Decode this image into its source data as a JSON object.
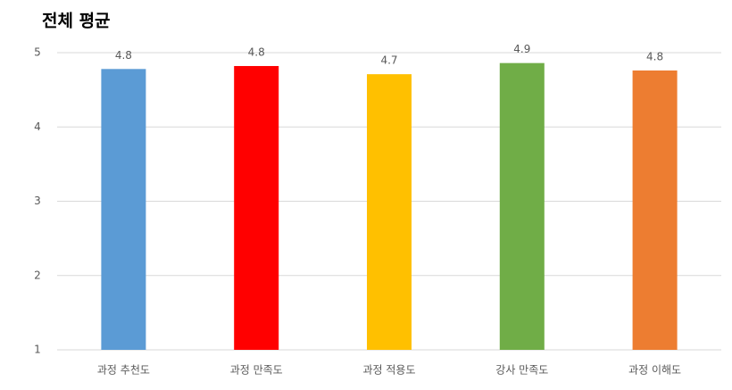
{
  "chart_data": {
    "type": "bar",
    "title": "전체 평균",
    "categories": [
      "과정 추천도",
      "과정 만족도",
      "과정 적용도",
      "강사 만족도",
      "과정 이해도"
    ],
    "values": [
      4.78,
      4.82,
      4.71,
      4.86,
      4.76
    ],
    "value_labels": [
      "4.8",
      "4.8",
      "4.7",
      "4.9",
      "4.8"
    ],
    "colors": [
      "#5b9bd5",
      "#ff0000",
      "#ffc000",
      "#70ad47",
      "#ed7d31"
    ],
    "ylim": [
      1,
      5
    ],
    "yticks": [
      1,
      2,
      3,
      4,
      5
    ],
    "grid": true
  }
}
